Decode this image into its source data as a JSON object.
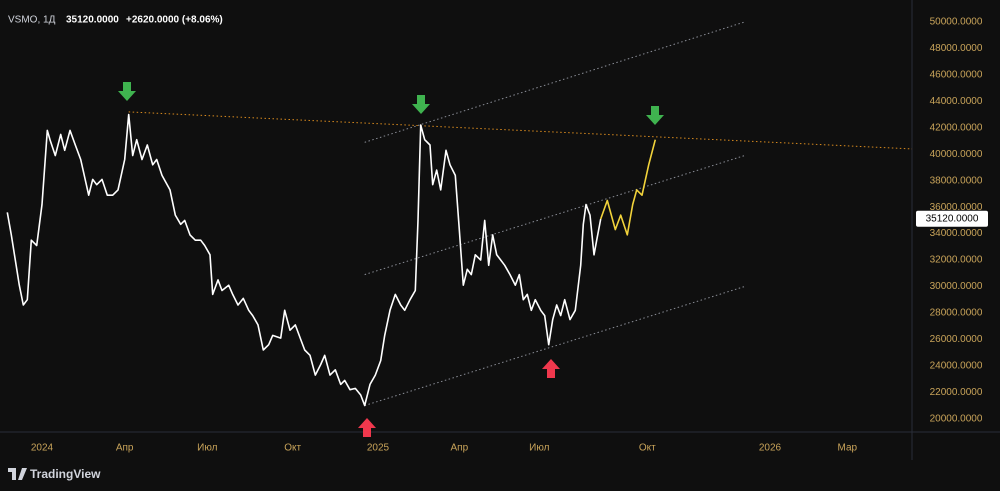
{
  "chart_data": {
    "type": "line",
    "symbol": "VSMO, 1Д",
    "change": "+2620.0000 (+8.06%)",
    "last_price": {
      "value": 35120,
      "label": "35120.0000"
    },
    "brand": "TradingView",
    "series": [
      {
        "color": "#ffffff",
        "x": [
          -26,
          -23,
          -20,
          -17,
          -14,
          -11,
          -8,
          -4,
          0,
          4,
          6,
          10,
          14,
          17,
          21,
          25,
          29,
          35,
          38,
          41,
          45,
          49,
          53,
          57,
          62,
          65,
          68,
          71,
          75,
          79,
          83,
          86,
          90,
          96,
          100,
          104,
          107,
          111,
          115,
          119,
          122,
          126,
          128,
          132,
          135,
          140,
          143,
          147,
          151,
          155,
          158,
          162,
          166,
          170,
          173,
          179,
          182,
          186,
          190,
          194,
          197,
          201,
          205,
          209,
          212,
          216,
          220,
          224,
          227,
          231,
          235,
          239,
          242,
          246,
          250,
          254,
          257,
          261,
          265,
          269,
          272,
          276,
          280,
          282,
          284,
          287,
          291,
          293,
          296,
          299,
          303,
          306,
          310,
          313,
          316,
          319,
          322,
          325,
          329,
          332,
          335,
          338,
          341,
          344,
          347,
          351,
          355,
          358,
          361,
          364,
          367,
          370,
          374,
          377,
          380,
          383,
          386,
          389,
          392,
          396,
          400,
          404,
          406,
          408,
          411,
          414,
          416,
          419
        ],
        "values": [
          35600,
          33900,
          32000,
          30100,
          28600,
          29000,
          33500,
          33100,
          36200,
          41800,
          41100,
          39900,
          41500,
          40300,
          41800,
          40700,
          39600,
          36900,
          38100,
          37700,
          38100,
          36900,
          36900,
          37300,
          39600,
          43000,
          39900,
          41100,
          39600,
          40700,
          39200,
          39600,
          38400,
          37300,
          35400,
          34700,
          35000,
          33900,
          33500,
          33500,
          33100,
          32400,
          29400,
          30500,
          29700,
          30100,
          29400,
          28600,
          29100,
          28200,
          27800,
          27100,
          25200,
          25600,
          26300,
          26100,
          28200,
          26700,
          27100,
          26000,
          25200,
          24800,
          23300,
          24100,
          24800,
          23300,
          23700,
          22600,
          22900,
          22200,
          22300,
          21800,
          21000,
          22600,
          23300,
          24400,
          26300,
          28200,
          29400,
          28600,
          28200,
          29000,
          29700,
          35000,
          42200,
          41100,
          40700,
          37700,
          38800,
          37300,
          40300,
          39200,
          38400,
          34300,
          30100,
          31300,
          30900,
          32400,
          32000,
          35000,
          31600,
          33900,
          32400,
          32000,
          31600,
          30900,
          30100,
          30900,
          29000,
          29400,
          28200,
          29000,
          28200,
          27800,
          25600,
          27500,
          28600,
          27800,
          29000,
          27500,
          28200,
          31600,
          34700,
          36200,
          35400,
          32400,
          33500,
          35100
        ]
      },
      {
        "color": "#f2d33b",
        "x": [
          419,
          424,
          430,
          434,
          439,
          443,
          446,
          450,
          455,
          460
        ],
        "values": [
          35100,
          36500,
          34300,
          35400,
          33900,
          36200,
          37300,
          36900,
          39200,
          41100
        ]
      }
    ],
    "trendlines": [
      {
        "color": "#d88a1e",
        "style": "dotted",
        "x": [
          65,
          653
        ],
        "y": [
          43200,
          40400
        ]
      },
      {
        "color": "#8a8d96",
        "style": "dotted",
        "x": [
          242,
          527
        ],
        "y": [
          21000,
          30000
        ]
      },
      {
        "color": "#8a8d96",
        "style": "dotted",
        "x": [
          242,
          527
        ],
        "y": [
          30900,
          39900
        ]
      },
      {
        "color": "#8a8d96",
        "style": "dotted",
        "x": [
          242,
          527
        ],
        "y": [
          40900,
          50000
        ]
      }
    ],
    "xlim": [
      -31.5,
      652.5
    ],
    "xticks": [
      {
        "value": 0,
        "label": "2024"
      },
      {
        "value": 62,
        "label": "Апр"
      },
      {
        "value": 124,
        "label": "Июл"
      },
      {
        "value": 188,
        "label": "Окт"
      },
      {
        "value": 252,
        "label": "2025"
      },
      {
        "value": 313,
        "label": "Апр"
      },
      {
        "value": 373,
        "label": "Июл"
      },
      {
        "value": 454,
        "label": "Окт"
      },
      {
        "value": 546,
        "label": "2026"
      },
      {
        "value": 604,
        "label": "Мар"
      }
    ],
    "ylim": [
      19000,
      51660
    ],
    "yticks": [
      {
        "value": 20000,
        "label": "20000.0000"
      },
      {
        "value": 22000,
        "label": "22000.0000"
      },
      {
        "value": 24000,
        "label": "24000.0000"
      },
      {
        "value": 26000,
        "label": "26000.0000"
      },
      {
        "value": 28000,
        "label": "28000.0000"
      },
      {
        "value": 30000,
        "label": "30000.0000"
      },
      {
        "value": 32000,
        "label": "32000.0000"
      },
      {
        "value": 34000,
        "label": "34000.0000"
      },
      {
        "value": 36000,
        "label": "36000.0000"
      },
      {
        "value": 38000,
        "label": "38000.0000"
      },
      {
        "value": 40000,
        "label": "40000.0000"
      },
      {
        "value": 42000,
        "label": "42000.0000"
      },
      {
        "value": 44000,
        "label": "44000.0000"
      },
      {
        "value": 46000,
        "label": "46000.0000"
      },
      {
        "value": 48000,
        "label": "48000.0000"
      },
      {
        "value": 50000,
        "label": "50000.0000"
      }
    ],
    "grid": false
  }
}
